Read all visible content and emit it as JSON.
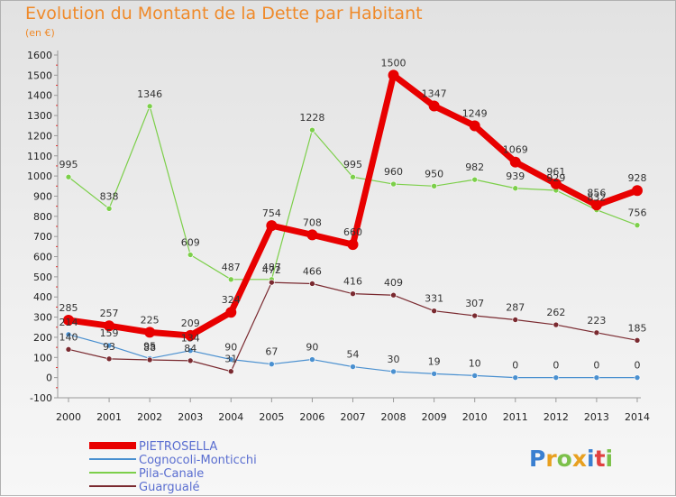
{
  "title": "Evolution du Montant de la Dette par Habitant",
  "subtitle": "(en €)",
  "logo_text": "Proxiti",
  "chart_data": {
    "type": "line",
    "title": "Evolution du Montant de la Dette par Habitant",
    "ylabel": "(en €)",
    "x": [
      "2000",
      "2001",
      "2002",
      "2003",
      "2004",
      "2005",
      "2006",
      "2007",
      "2008",
      "2009",
      "2010",
      "2011",
      "2012",
      "2013",
      "2014"
    ],
    "ylim": [
      -100,
      1600
    ],
    "yticks": [
      -100,
      0,
      100,
      200,
      300,
      400,
      500,
      600,
      700,
      800,
      900,
      1000,
      1100,
      1200,
      1300,
      1400,
      1500,
      1600
    ],
    "grid": false,
    "legend_position": "bottom-left",
    "series": [
      {
        "name": "PIETROSELLA",
        "color": "#e80000",
        "values": [
          285,
          257,
          225,
          209,
          324,
          754,
          708,
          660,
          1500,
          1347,
          1249,
          1069,
          961,
          856,
          928
        ]
      },
      {
        "name": "Cognocoli-Monticchi",
        "color": "#4a90d0",
        "values": [
          214,
          159,
          95,
          134,
          90,
          67,
          90,
          54,
          30,
          19,
          10,
          0,
          0,
          0,
          0
        ]
      },
      {
        "name": "Pila-Canale",
        "color": "#7ccf4a",
        "values": [
          995,
          838,
          1346,
          609,
          487,
          487,
          1228,
          995,
          960,
          950,
          982,
          939,
          929,
          832,
          756
        ]
      },
      {
        "name": "Guargualé",
        "color": "#7a2a30",
        "values": [
          140,
          93,
          88,
          84,
          31,
          472,
          466,
          416,
          409,
          331,
          307,
          287,
          262,
          223,
          185
        ]
      }
    ]
  }
}
